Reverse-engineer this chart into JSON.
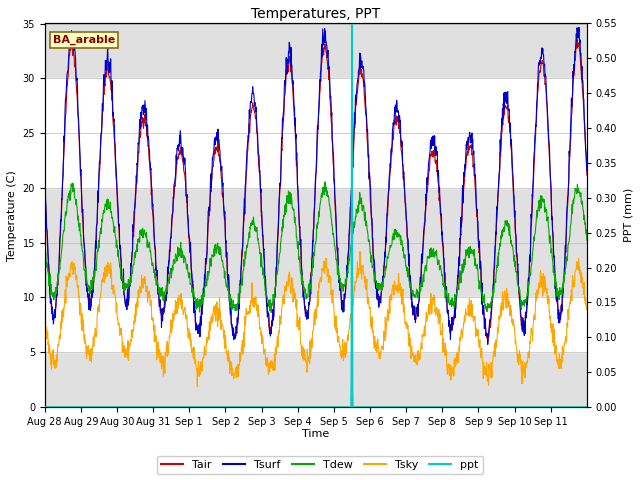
{
  "title": "Temperatures, PPT",
  "xlabel": "Time",
  "ylabel_left": "Temperature (C)",
  "ylabel_right": "PPT (mm)",
  "legend_label": "BA_arable",
  "legend_label_color": "#8B0000",
  "legend_label_bg": "#FFFFC0",
  "ylim_left": [
    0,
    35
  ],
  "ylim_right": [
    0.0,
    0.55
  ],
  "yticks_left": [
    0,
    5,
    10,
    15,
    20,
    25,
    30,
    35
  ],
  "yticks_right": [
    0.0,
    0.05,
    0.1,
    0.15,
    0.2,
    0.25,
    0.3,
    0.35,
    0.4,
    0.45,
    0.5,
    0.55
  ],
  "colors": {
    "Tair": "#CC0000",
    "Tsurf": "#0000CC",
    "Tdew": "#00AA00",
    "Tsky": "#FFA500",
    "ppt": "#00CCCC"
  },
  "bg_color": "#FFFFFF",
  "plot_bg_color": "#E0E0E0",
  "band1": [
    20,
    30
  ],
  "band2": [
    5,
    10
  ],
  "band_color": "#FFFFFF",
  "figsize": [
    6.4,
    4.8
  ],
  "dpi": 100
}
